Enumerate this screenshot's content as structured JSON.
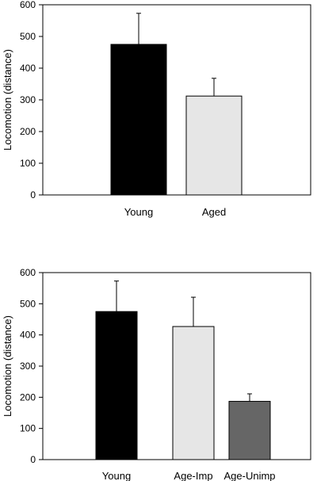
{
  "chart_data": [
    {
      "type": "bar",
      "categories": [
        "Young",
        "Aged"
      ],
      "values": [
        475,
        312
      ],
      "errors": [
        98,
        56
      ],
      "colors": [
        "#000000",
        "#e6e6e6"
      ],
      "xlabel": "",
      "ylabel": "Locomotion (distance)",
      "ylim": [
        0,
        600
      ],
      "yticks": [
        0,
        100,
        200,
        300,
        400,
        500,
        600
      ],
      "grid": false
    },
    {
      "type": "bar",
      "categories": [
        "Young",
        "Age-Imp",
        "Age-Unimp"
      ],
      "values": [
        475,
        427,
        187
      ],
      "errors": [
        98,
        94,
        24
      ],
      "colors": [
        "#000000",
        "#e6e6e6",
        "#666666"
      ],
      "xlabel": "",
      "ylabel": "Locomotion (distance)",
      "ylim": [
        0,
        600
      ],
      "yticks": [
        0,
        100,
        200,
        300,
        400,
        500,
        600
      ],
      "grid": false
    }
  ]
}
